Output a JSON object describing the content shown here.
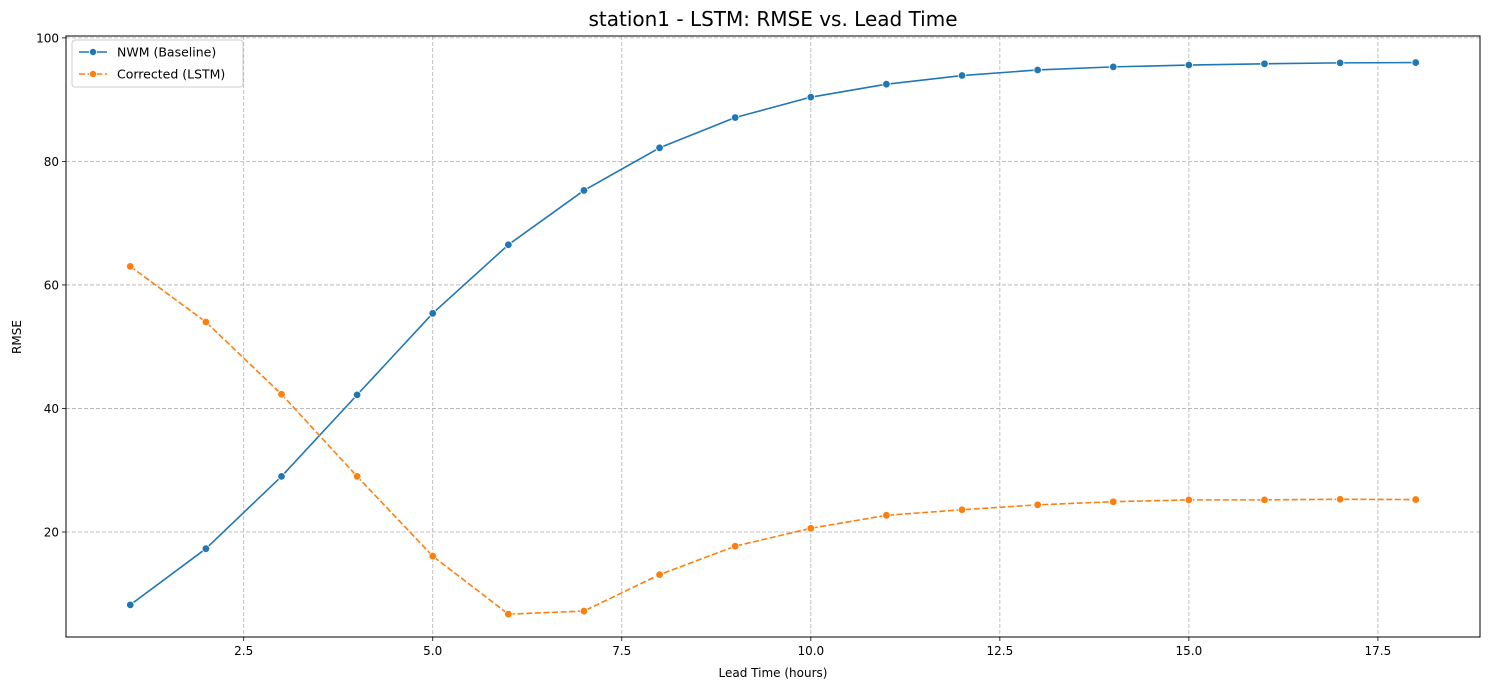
{
  "chart_data": {
    "type": "line",
    "title": "station1 - LSTM: RMSE vs. Lead Time",
    "xlabel": "Lead Time (hours)",
    "ylabel": "RMSE",
    "x": [
      1,
      2,
      3,
      4,
      5,
      6,
      7,
      8,
      9,
      10,
      11,
      12,
      13,
      14,
      15,
      16,
      17,
      18
    ],
    "xlim": [
      0.15,
      18.85
    ],
    "ylim": [
      3.0,
      100.3
    ],
    "xticks": [
      2.5,
      5.0,
      7.5,
      10.0,
      12.5,
      15.0,
      17.5
    ],
    "xtick_labels": [
      "2.5",
      "5.0",
      "7.5",
      "10.0",
      "12.5",
      "15.0",
      "17.5"
    ],
    "yticks": [
      20,
      40,
      60,
      80,
      100
    ],
    "ytick_labels": [
      "20",
      "40",
      "60",
      "80",
      "100"
    ],
    "grid": true,
    "legend_position": "top-left",
    "series": [
      {
        "name": "NWM (Baseline)",
        "color": "#1f77b4",
        "linestyle": "solid",
        "marker": "circle",
        "values": [
          8.2,
          17.3,
          29.0,
          42.2,
          55.4,
          66.5,
          75.3,
          82.2,
          87.1,
          90.4,
          92.5,
          93.9,
          94.8,
          95.3,
          95.6,
          95.8,
          95.95,
          96.0
        ]
      },
      {
        "name": "Corrected (LSTM)",
        "color": "#ff7f0e",
        "linestyle": "dashed",
        "marker": "circle",
        "values": [
          63.0,
          54.0,
          42.3,
          29.0,
          16.1,
          6.7,
          7.2,
          13.1,
          17.7,
          20.6,
          22.7,
          23.6,
          24.4,
          24.9,
          25.2,
          25.2,
          25.3,
          25.25
        ]
      }
    ]
  }
}
